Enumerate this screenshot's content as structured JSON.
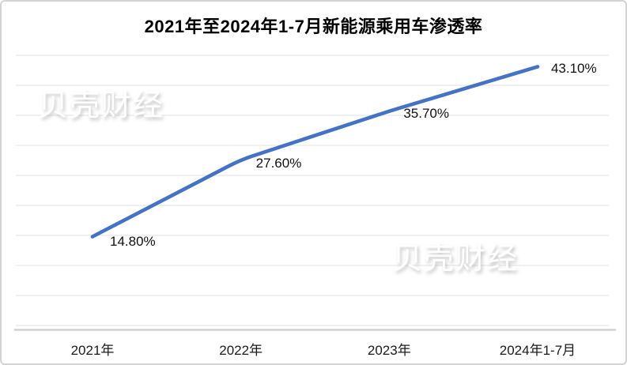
{
  "chart_data": {
    "type": "line",
    "title": "2021年至2024年1-7月新能源乘用车渗透率",
    "categories": [
      "2021年",
      "2022年",
      "2023年",
      "2024年1-7月"
    ],
    "values": [
      14.8,
      27.6,
      35.7,
      43.1
    ],
    "data_labels": [
      "14.80%",
      "27.60%",
      "35.70%",
      "43.10%"
    ],
    "ylim": [
      0,
      45
    ],
    "grid_step": 5,
    "grid": "horizontal-only",
    "legend_position": "none",
    "line_color": "#4472C4",
    "grid_color": "#e7e7e7",
    "axis_color": "#d2d2d2",
    "label_color": "#111111"
  },
  "watermarks": [
    "贝壳财经",
    "贝壳财经"
  ]
}
